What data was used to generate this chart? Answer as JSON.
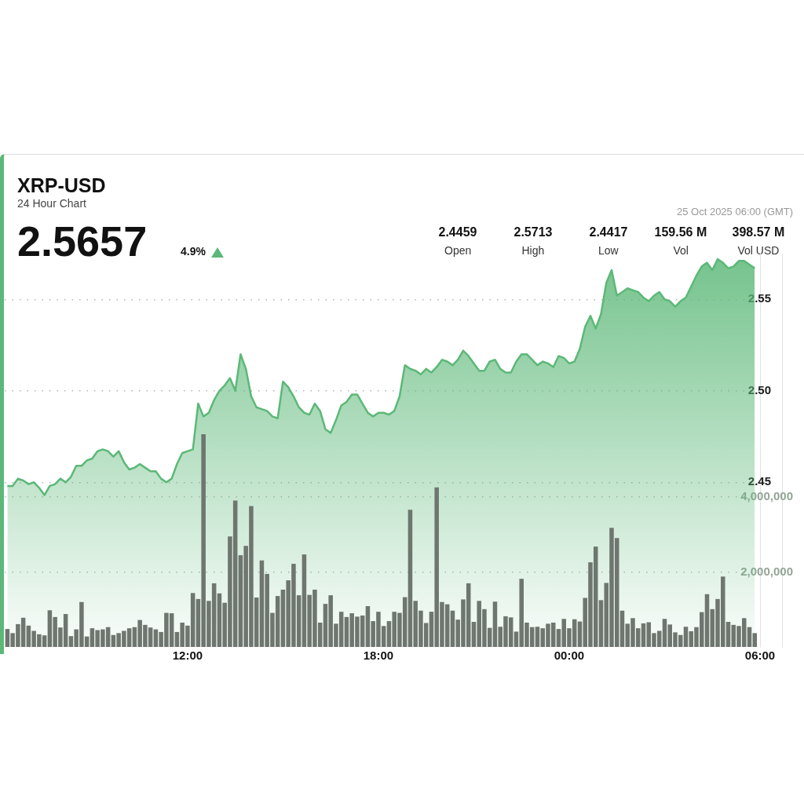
{
  "chart_data": {
    "type": "area",
    "title": "XRP-USD",
    "subtitle": "24 Hour Chart",
    "annotations": [
      "2.5657",
      "4.9%",
      "2.4459",
      "Open",
      "2.5713",
      "High",
      "2.4417",
      "Low",
      "159.56 M",
      "Vol",
      "398.57 M",
      "Vol USD",
      "25 Oct 2025 06:00 (GMT)"
    ],
    "x": [
      "2025-10-24T06:20",
      "2025-10-24T06:30",
      "2025-10-24T06:40",
      "2025-10-24T06:50",
      "2025-10-24T07:00",
      "2025-10-24T07:10",
      "2025-10-24T07:20",
      "2025-10-24T07:30",
      "2025-10-24T07:40",
      "2025-10-24T07:50",
      "2025-10-24T08:00",
      "2025-10-24T08:10",
      "2025-10-24T08:20",
      "2025-10-24T08:30",
      "2025-10-24T08:40",
      "2025-10-24T08:50",
      "2025-10-24T09:00",
      "2025-10-24T09:10",
      "2025-10-24T09:20",
      "2025-10-24T09:30",
      "2025-10-24T09:40",
      "2025-10-24T09:50",
      "2025-10-24T10:00",
      "2025-10-24T10:10",
      "2025-10-24T10:20",
      "2025-10-24T10:30",
      "2025-10-24T10:40",
      "2025-10-24T10:50",
      "2025-10-24T11:00",
      "2025-10-24T11:10",
      "2025-10-24T11:20",
      "2025-10-24T11:30",
      "2025-10-24T11:40",
      "2025-10-24T11:50",
      "2025-10-24T12:00",
      "2025-10-24T12:10",
      "2025-10-24T12:20",
      "2025-10-24T12:30",
      "2025-10-24T12:40",
      "2025-10-24T12:50",
      "2025-10-24T13:00",
      "2025-10-24T13:10",
      "2025-10-24T13:20",
      "2025-10-24T13:30",
      "2025-10-24T13:40",
      "2025-10-24T13:50",
      "2025-10-24T14:00",
      "2025-10-24T14:10",
      "2025-10-24T14:20",
      "2025-10-24T14:30",
      "2025-10-24T14:40",
      "2025-10-24T14:50",
      "2025-10-24T15:00",
      "2025-10-24T15:10",
      "2025-10-24T15:20",
      "2025-10-24T15:30",
      "2025-10-24T15:40",
      "2025-10-24T15:50",
      "2025-10-24T16:00",
      "2025-10-24T16:10",
      "2025-10-24T16:20",
      "2025-10-24T16:30",
      "2025-10-24T16:40",
      "2025-10-24T16:50",
      "2025-10-24T17:00",
      "2025-10-24T17:10",
      "2025-10-24T17:20",
      "2025-10-24T17:30",
      "2025-10-24T17:40",
      "2025-10-24T17:50",
      "2025-10-24T18:00",
      "2025-10-24T18:10",
      "2025-10-24T18:20",
      "2025-10-24T18:30",
      "2025-10-24T18:40",
      "2025-10-24T18:50",
      "2025-10-24T19:00",
      "2025-10-24T19:10",
      "2025-10-24T19:20",
      "2025-10-24T19:30",
      "2025-10-24T19:40",
      "2025-10-24T19:50",
      "2025-10-24T20:00",
      "2025-10-24T20:10",
      "2025-10-24T20:20",
      "2025-10-24T20:30",
      "2025-10-24T20:40",
      "2025-10-24T20:50",
      "2025-10-24T21:00",
      "2025-10-24T21:10",
      "2025-10-24T21:20",
      "2025-10-24T21:30",
      "2025-10-24T21:40",
      "2025-10-24T21:50",
      "2025-10-24T22:00",
      "2025-10-24T22:10",
      "2025-10-24T22:20",
      "2025-10-24T22:30",
      "2025-10-24T22:40",
      "2025-10-24T22:50",
      "2025-10-24T23:00",
      "2025-10-24T23:10",
      "2025-10-24T23:20",
      "2025-10-24T23:30",
      "2025-10-24T23:40",
      "2025-10-24T23:50",
      "2025-10-25T00:00",
      "2025-10-25T00:10",
      "2025-10-25T00:20",
      "2025-10-25T00:30",
      "2025-10-25T00:40",
      "2025-10-25T00:50",
      "2025-10-25T01:00",
      "2025-10-25T01:10",
      "2025-10-25T01:20",
      "2025-10-25T01:30",
      "2025-10-25T01:40",
      "2025-10-25T01:50",
      "2025-10-25T02:00",
      "2025-10-25T02:10",
      "2025-10-25T02:20",
      "2025-10-25T02:30",
      "2025-10-25T02:40",
      "2025-10-25T02:50",
      "2025-10-25T03:00",
      "2025-10-25T03:10",
      "2025-10-25T03:20",
      "2025-10-25T03:30",
      "2025-10-25T03:40",
      "2025-10-25T03:50",
      "2025-10-25T04:00",
      "2025-10-25T04:10",
      "2025-10-25T04:20",
      "2025-10-25T04:30",
      "2025-10-25T04:40",
      "2025-10-25T04:50",
      "2025-10-25T05:00",
      "2025-10-25T05:10",
      "2025-10-25T05:20",
      "2025-10-25T05:30",
      "2025-10-25T05:40",
      "2025-10-25T05:50"
    ],
    "xlim": [
      "2025-10-24T06:15",
      "2025-10-25T06:00"
    ],
    "xticks": [
      {
        "value": "2025-10-24T12:00",
        "label": "12:00"
      },
      {
        "value": "2025-10-24T18:00",
        "label": "18:00"
      },
      {
        "value": "2025-10-25T00:00",
        "label": "00:00"
      },
      {
        "value": "2025-10-25T06:00",
        "label": "06:00"
      }
    ],
    "ylim": [
      2.36,
      2.575
    ],
    "yticks": [
      {
        "value": 2.45,
        "label": "2.45"
      },
      {
        "value": 2.5,
        "label": "2.50"
      },
      {
        "value": 2.55,
        "label": "2.55"
      }
    ],
    "y2lim": [
      0,
      10500000
    ],
    "y2ticks": [
      {
        "value": 2000000,
        "label": "2,000,000"
      },
      {
        "value": 4000000,
        "label": "4,000,000"
      }
    ],
    "grid": "y",
    "series": [
      {
        "color": "#5cb878",
        "values": [
          2.448,
          2.448,
          2.452,
          2.451,
          2.449,
          2.45,
          2.447,
          2.443,
          2.448,
          2.449,
          2.452,
          2.45,
          2.453,
          2.459,
          2.459,
          2.462,
          2.463,
          2.467,
          2.468,
          2.467,
          2.464,
          2.467,
          2.461,
          2.457,
          2.458,
          2.46,
          2.458,
          2.456,
          2.456,
          2.452,
          2.45,
          2.452,
          2.46,
          2.466,
          2.467,
          2.468,
          2.493,
          2.486,
          2.488,
          2.495,
          2.5,
          2.503,
          2.507,
          2.5,
          2.52,
          2.512,
          2.497,
          2.491,
          2.49,
          2.489,
          2.486,
          2.485,
          2.505,
          2.502,
          2.497,
          2.491,
          2.488,
          2.487,
          2.493,
          2.489,
          2.479,
          2.477,
          2.484,
          2.492,
          2.494,
          2.498,
          2.498,
          2.493,
          2.488,
          2.486,
          2.488,
          2.488,
          2.487,
          2.489,
          2.497,
          2.514,
          2.512,
          2.511,
          2.509,
          2.512,
          2.51,
          2.513,
          2.517,
          2.516,
          2.514,
          2.517,
          2.522,
          2.519,
          2.515,
          2.511,
          2.511,
          2.516,
          2.517,
          2.512,
          2.51,
          2.51,
          2.516,
          2.52,
          2.52,
          2.517,
          2.514,
          2.516,
          2.515,
          2.513,
          2.519,
          2.518,
          2.515,
          2.516,
          2.523,
          2.535,
          2.541,
          2.534,
          2.542,
          2.559,
          2.566,
          2.552,
          2.554,
          2.556,
          2.555,
          2.554,
          2.551,
          2.549,
          2.552,
          2.554,
          2.55,
          2.549,
          2.546,
          2.549,
          2.551,
          2.557,
          2.563,
          2.568,
          2.57,
          2.566,
          2.572,
          2.57,
          2.567,
          2.568,
          2.571,
          2.571,
          2.569,
          2.567
        ]
      },
      {
        "type": "bar",
        "axis": "y2",
        "color": "#6e766f",
        "values": [
          480000,
          370000,
          610000,
          780000,
          570000,
          430000,
          340000,
          310000,
          980000,
          800000,
          520000,
          880000,
          290000,
          470000,
          1200000,
          280000,
          500000,
          450000,
          470000,
          530000,
          320000,
          370000,
          430000,
          500000,
          530000,
          720000,
          590000,
          520000,
          470000,
          400000,
          910000,
          900000,
          400000,
          650000,
          570000,
          1440000,
          1280000,
          5680000,
          1230000,
          1700000,
          1430000,
          1180000,
          2950000,
          3910000,
          2450000,
          2700000,
          3760000,
          1320000,
          2310000,
          1950000,
          910000,
          1360000,
          1530000,
          1780000,
          2220000,
          1380000,
          2470000,
          1390000,
          1530000,
          650000,
          1150000,
          1380000,
          620000,
          940000,
          800000,
          900000,
          810000,
          840000,
          1090000,
          690000,
          940000,
          560000,
          690000,
          940000,
          910000,
          1330000,
          3660000,
          1230000,
          970000,
          640000,
          940000,
          4260000,
          1200000,
          1140000,
          970000,
          730000,
          1270000,
          1700000,
          670000,
          1230000,
          1010000,
          510000,
          1210000,
          540000,
          820000,
          790000,
          410000,
          1820000,
          650000,
          530000,
          540000,
          500000,
          620000,
          650000,
          480000,
          750000,
          500000,
          740000,
          680000,
          1310000,
          2260000,
          2680000,
          1250000,
          1710000,
          3180000,
          2910000,
          970000,
          620000,
          770000,
          500000,
          630000,
          660000,
          370000,
          430000,
          750000,
          600000,
          390000,
          320000,
          540000,
          420000,
          530000,
          930000,
          1410000,
          1010000,
          1280000,
          1880000,
          670000,
          590000,
          560000,
          770000,
          530000,
          370000
        ]
      }
    ]
  }
}
